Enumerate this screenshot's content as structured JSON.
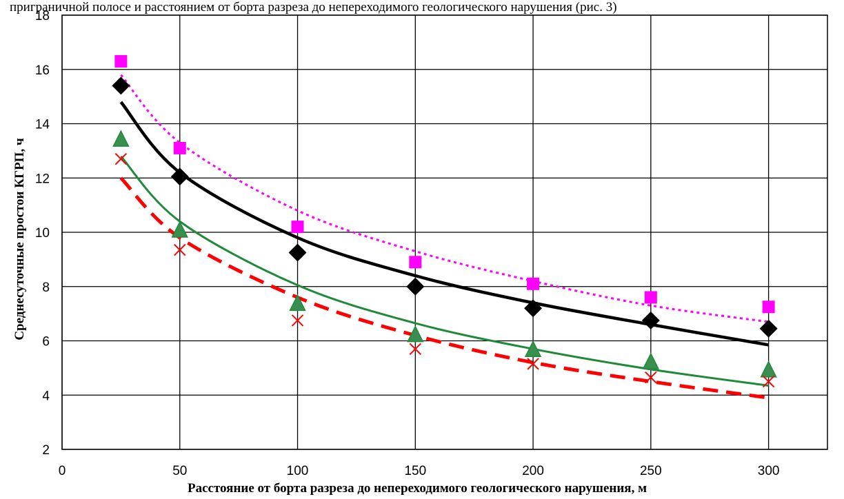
{
  "page_text": {
    "header_fragment": "приграничной полосе и расстоянием от борта разреза до непереходимого геологического нарушения (рис. 3)"
  },
  "colors": {
    "black": "#000000",
    "magenta": "#ff00ff",
    "green": "#1f8a3a",
    "green_fill": "#3a8f50",
    "red": "#ff0000",
    "grid": "#000000"
  },
  "chart_data": {
    "type": "scatter",
    "title": "",
    "xlabel": "Расстояние от борта разреза до непереходимого геологического нарушения, м",
    "ylabel": "Среднесуточные простои  КГРП, ч",
    "xlim": [
      0,
      325
    ],
    "ylim": [
      2,
      18
    ],
    "x_ticks": [
      0,
      50,
      100,
      150,
      200,
      250,
      300
    ],
    "y_ticks": [
      2,
      4,
      6,
      8,
      10,
      12,
      14,
      16,
      18
    ],
    "grid": true,
    "legend": "none",
    "x": [
      25,
      50,
      100,
      150,
      200,
      250,
      300
    ],
    "series": [
      {
        "marker": "square",
        "color": "magenta",
        "values": [
          16.3,
          13.1,
          10.2,
          8.9,
          8.1,
          7.6,
          7.25
        ],
        "trend": {
          "style": "dotted",
          "values": [
            15.8,
            13.3,
            10.8,
            9.3,
            8.2,
            7.3,
            6.7
          ]
        }
      },
      {
        "marker": "diamond",
        "color": "black",
        "values": [
          15.4,
          12.05,
          9.25,
          8.0,
          7.2,
          6.75,
          6.45
        ],
        "trend": {
          "style": "solid-thick",
          "values": [
            14.8,
            12.2,
            9.8,
            8.4,
            7.4,
            6.6,
            5.85
          ]
        }
      },
      {
        "marker": "triangle",
        "color": "green",
        "values": [
          13.4,
          10.05,
          7.35,
          6.2,
          5.65,
          5.2,
          4.9
        ],
        "trend": {
          "style": "solid",
          "values": [
            12.8,
            10.4,
            8.05,
            6.65,
            5.7,
            4.95,
            4.35
          ]
        }
      },
      {
        "marker": "x",
        "color": "red",
        "values": [
          12.7,
          9.35,
          6.75,
          5.7,
          5.15,
          4.65,
          4.5
        ],
        "trend": {
          "style": "dashed",
          "values": [
            12.0,
            9.8,
            7.6,
            6.2,
            5.2,
            4.5,
            3.9
          ]
        }
      }
    ]
  }
}
